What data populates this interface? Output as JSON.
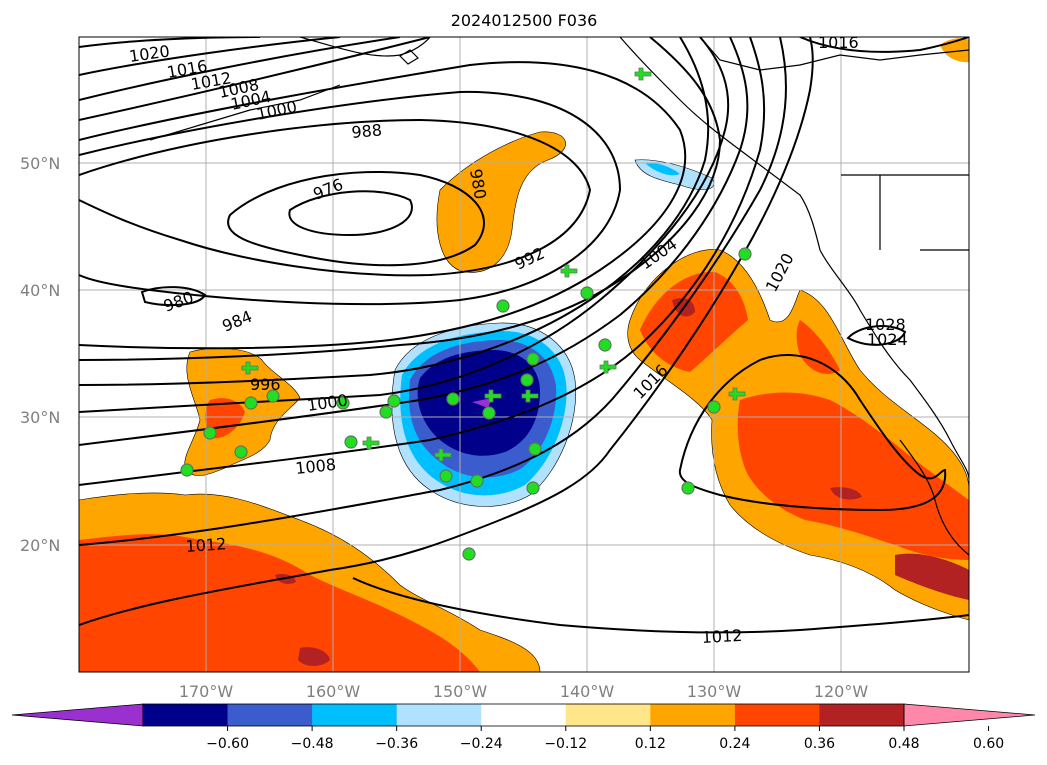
{
  "title": "2024012500 F036",
  "lat_labels": [
    "50°N",
    "40°N",
    "30°N",
    "20°N"
  ],
  "lon_labels": [
    "170°W",
    "160°W",
    "150°W",
    "140°W",
    "130°W",
    "120°W"
  ],
  "contour_labels": [
    "1020",
    "1016",
    "1012",
    "1008",
    "1004",
    "1000",
    "988",
    "976",
    "980",
    "992",
    "1004",
    "1020",
    "980",
    "984",
    "996",
    "1000",
    "1008",
    "1016",
    "1028",
    "1024",
    "1012",
    "1012",
    "1016"
  ],
  "colorbar": {
    "ticks": [
      "−0.60",
      "−0.48",
      "−0.36",
      "−0.24",
      "−0.12",
      "0.12",
      "0.24",
      "0.36",
      "0.48",
      "0.60"
    ],
    "colors": [
      "#9b30d0",
      "#00008b",
      "#3a5ccc",
      "#00bfff",
      "#b0e2ff",
      "#ffffff",
      "#ffe68a",
      "#ffa500",
      "#ff4500",
      "#b22222",
      "#ff88aa"
    ]
  },
  "map_colors": {
    "strong_positive": "#ff4500",
    "positive": "#ffa500",
    "weak_positive": "#ffe68a",
    "weak_negative": "#b0e2ff",
    "negative": "#00bfff",
    "strong_negative": "#00008b",
    "station_marker": "#22dd22"
  }
}
